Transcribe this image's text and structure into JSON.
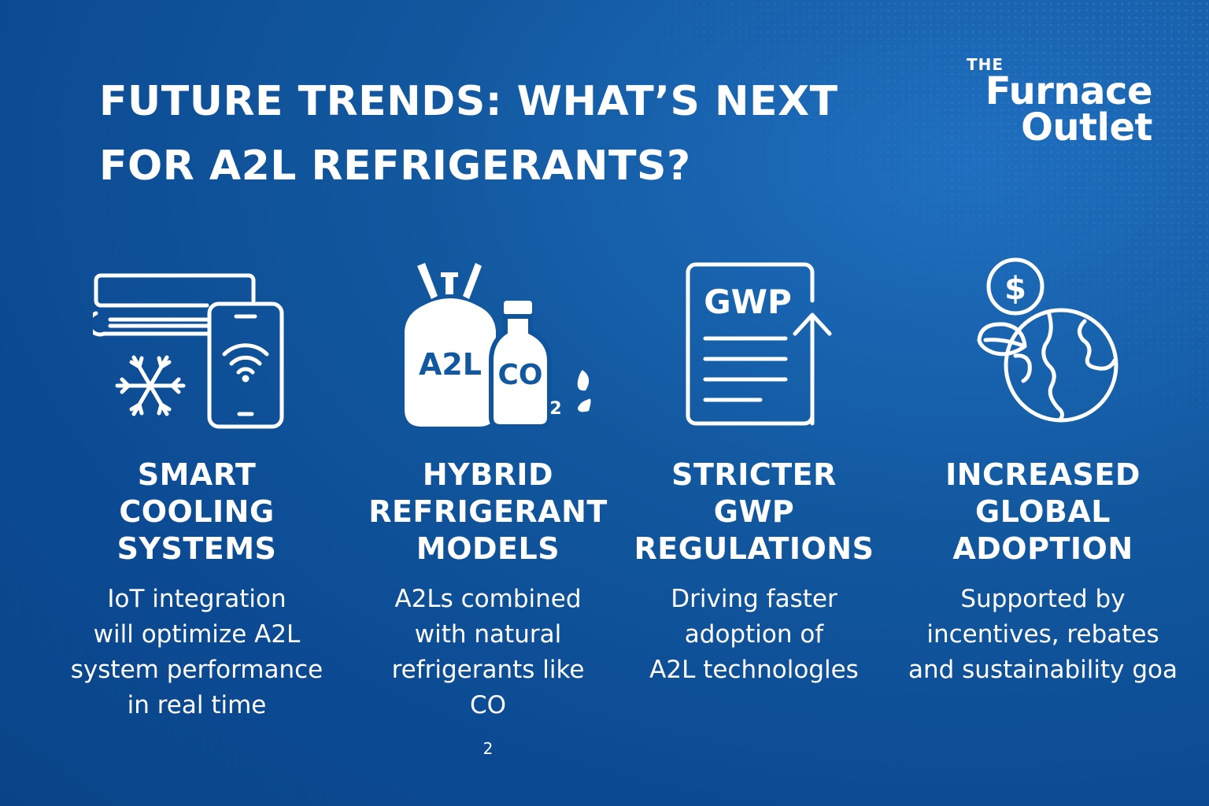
{
  "header": {
    "title_line1": "FUTURE TRENDS: WHAT’S NEXT",
    "title_line2": "FOR A2L REFRIGERANTS?"
  },
  "logo": {
    "the": "THE",
    "line1": "Furnace",
    "line2": "Outlet"
  },
  "columns": [
    {
      "icon": "smart-cooling-icon",
      "heading": [
        "SMART",
        "COOLING",
        "SYSTEMS"
      ],
      "body": [
        "IoT integration",
        "will optimize A2L",
        "system performance",
        "in real time"
      ]
    },
    {
      "icon": "refrigerant-cylinder-icon",
      "icon_label_main": "A2L",
      "icon_label_co": "CO",
      "icon_label_sub": "2",
      "heading": [
        "HYBRID",
        "REFRIGERANT",
        "MODELS"
      ],
      "body": [
        "A2Ls combined",
        "with natural",
        "refrigerants like"
      ],
      "body_last_main": "CO",
      "body_last_sub": "2"
    },
    {
      "icon": "gwp-document-icon",
      "icon_label": "GWP",
      "heading": [
        "STRICTER",
        "GWP",
        "REGULATIONS"
      ],
      "body": [
        "Driving faster",
        "adoption of",
        "A2L technologles"
      ]
    },
    {
      "icon": "globe-dollar-icon",
      "icon_label": "$",
      "heading": [
        "INCREASED",
        "GLOBAL",
        "ADOPTION"
      ],
      "body": [
        "Supported by",
        "incentives, rebates",
        "and sustainability goa"
      ]
    }
  ],
  "colors": {
    "background": "#0b4a92",
    "accent": "#1f6fc0",
    "text": "#ffffff"
  }
}
